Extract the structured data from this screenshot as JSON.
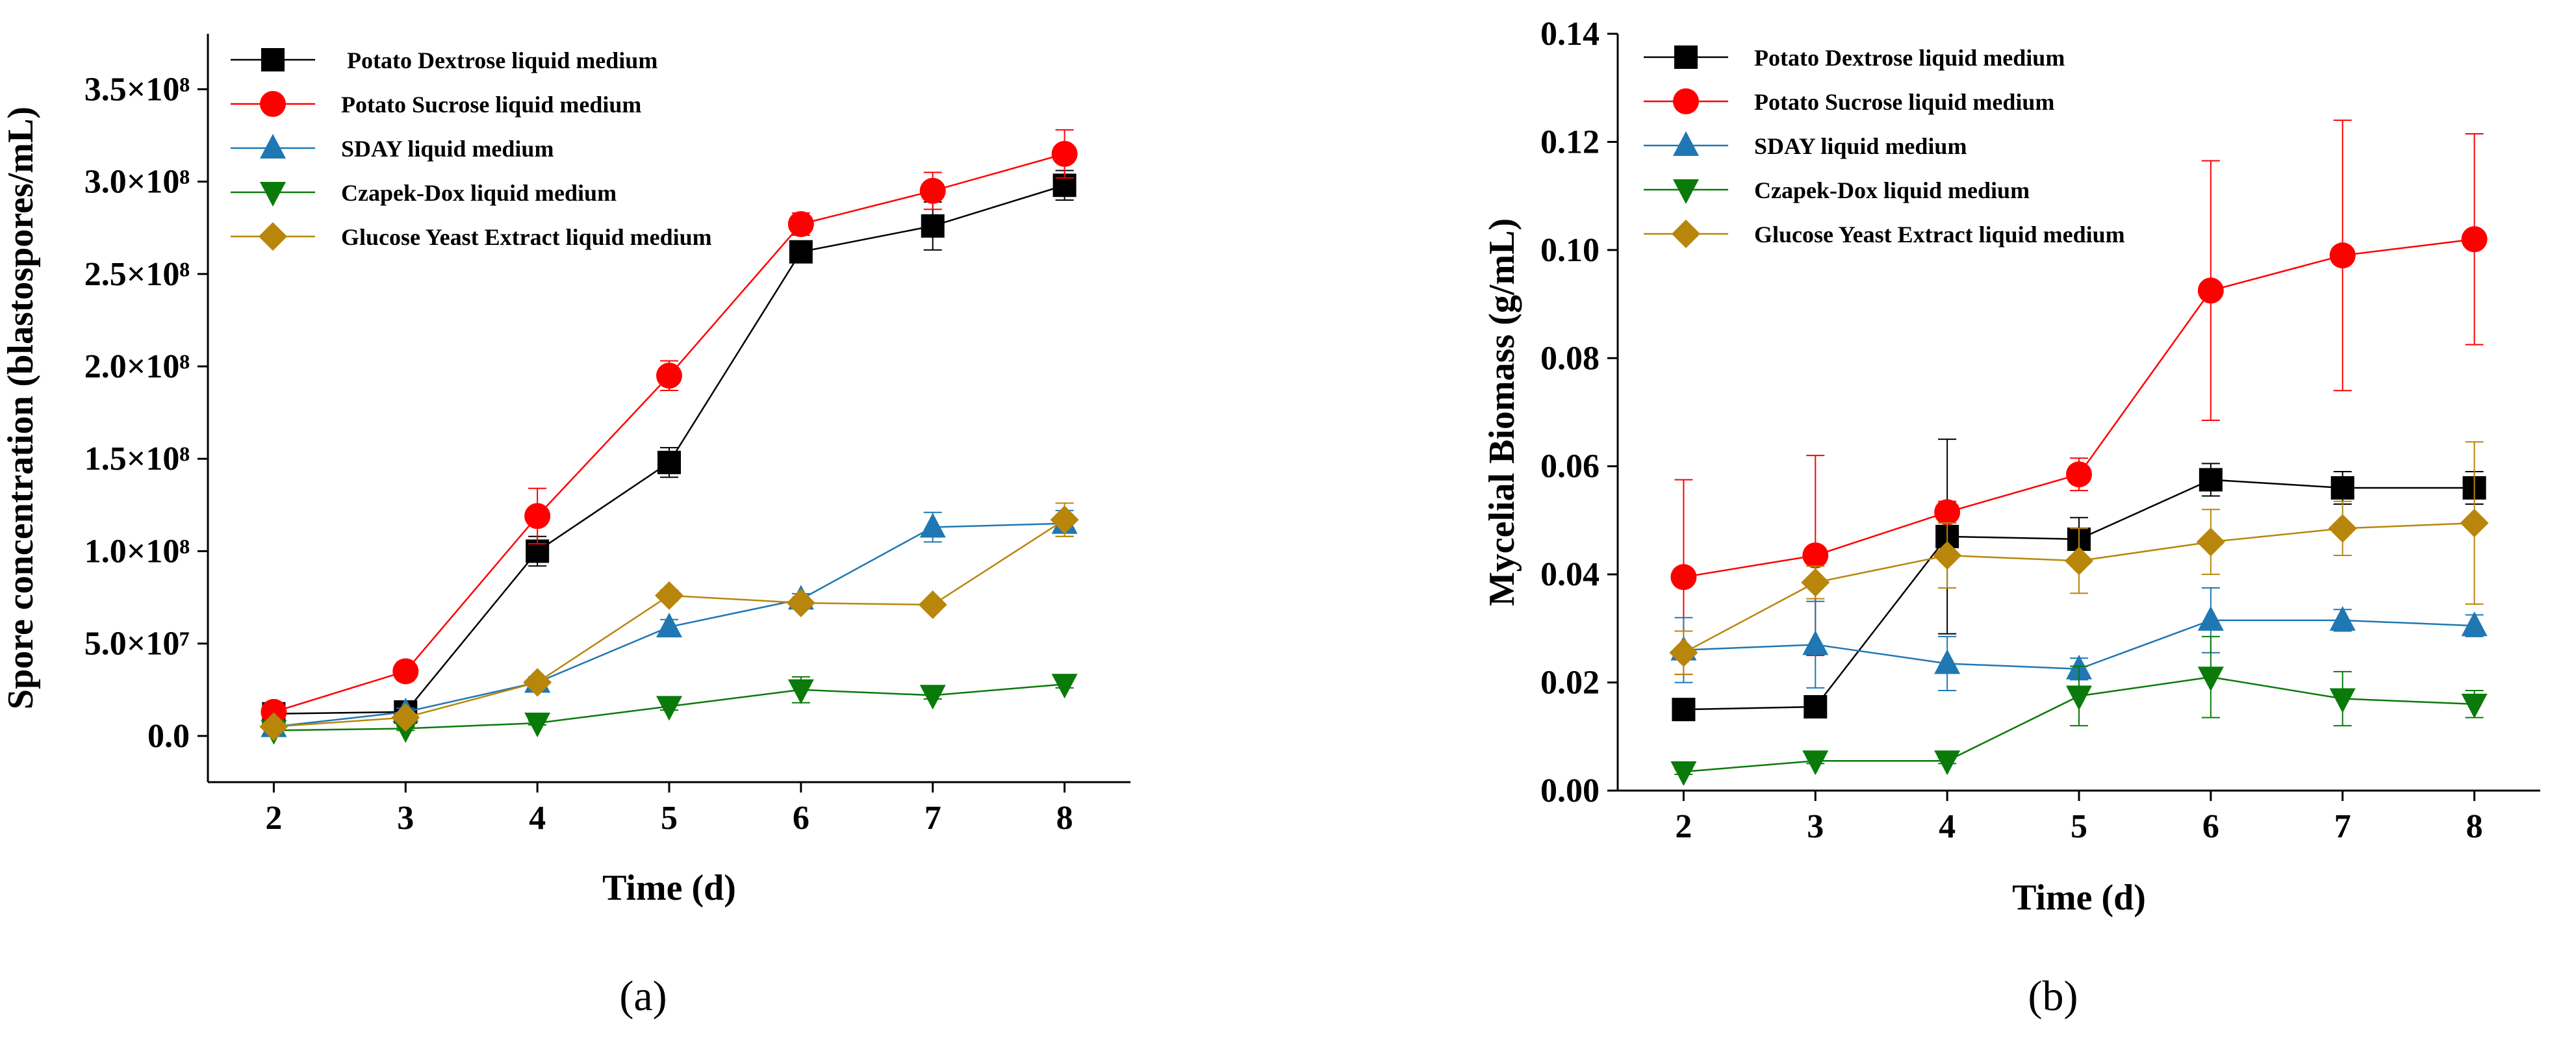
{
  "chart_data": [
    {
      "type": "line",
      "panel_label": "(a)",
      "xlabel": "Time (d)",
      "ylabel": "Spore concentration (blastospores/mL)",
      "xlim": [
        1.5,
        8.5
      ],
      "ylim": [
        -25000000.0,
        380000000.0
      ],
      "x_ticks": [
        2,
        3,
        4,
        5,
        6,
        7,
        8
      ],
      "x_tick_labels": [
        "2",
        "3",
        "4",
        "5",
        "6",
        "7",
        "8"
      ],
      "y_ticks": [
        0,
        50000000.0,
        100000000.0,
        150000000.0,
        200000000.0,
        250000000.0,
        300000000.0,
        350000000.0
      ],
      "y_tick_labels": [
        "0.0",
        "5.0×10⁷",
        "1.0×10⁸",
        "1.5×10⁸",
        "2.0×10⁸",
        "2.5×10⁸",
        "3.0×10⁸",
        "3.5×10⁸"
      ],
      "legend_position": "top-left",
      "x": [
        2,
        3,
        4,
        5,
        6,
        7,
        8
      ],
      "series": [
        {
          "name": " Potato Dextrose liquid medium",
          "color": "#000000",
          "marker": "square",
          "values": [
            12000000,
            13000000,
            100000000,
            148000000,
            262000000,
            276000000,
            298000000
          ],
          "errors": [
            1000000,
            1000000,
            8000000,
            8000000,
            5000000,
            13000000,
            8000000
          ]
        },
        {
          "name": "Potato Sucrose liquid medium",
          "color": "#ff0000",
          "marker": "circle",
          "values": [
            13000000,
            35000000,
            119000000,
            195000000,
            277000000,
            295000000,
            315000000
          ],
          "errors": [
            2000000,
            5000000,
            15000000,
            8000000,
            6000000,
            10000000,
            13000000
          ]
        },
        {
          "name": "SDAY liquid medium",
          "color": "#1f77b4",
          "marker": "triangle-up",
          "values": [
            5000000,
            13000000,
            29000000,
            59000000,
            74000000,
            113000000,
            115000000
          ],
          "errors": [
            1000000,
            2000000,
            3000000,
            4000000,
            3000000,
            8000000,
            7000000
          ]
        },
        {
          "name": "Czapek-Dox liquid medium",
          "color": "#0a7a0a",
          "marker": "triangle-down",
          "values": [
            3000000,
            4000000,
            7000000,
            16000000,
            25000000,
            22000000,
            28000000
          ],
          "errors": [
            1000000,
            1000000,
            1000000,
            2000000,
            7000000,
            2000000,
            2000000
          ]
        },
        {
          "name": "Glucose Yeast Extract liquid medium",
          "color": "#b8860b",
          "marker": "diamond",
          "values": [
            5000000,
            10000000,
            29000000,
            76000000,
            72000000,
            71000000,
            117000000
          ],
          "errors": [
            1000000,
            2000000,
            2000000,
            3000000,
            3000000,
            2000000,
            9000000
          ]
        }
      ]
    },
    {
      "type": "line",
      "panel_label": "(b)",
      "xlabel": "Time (d)",
      "ylabel": "Mycelial Biomass (g/mL)",
      "xlim": [
        1.5,
        8.5
      ],
      "ylim": [
        0,
        0.14
      ],
      "x_ticks": [
        2,
        3,
        4,
        5,
        6,
        7,
        8
      ],
      "x_tick_labels": [
        "2",
        "3",
        "4",
        "5",
        "6",
        "7",
        "8"
      ],
      "y_ticks": [
        0,
        0.02,
        0.04,
        0.06,
        0.08,
        0.1,
        0.12,
        0.14
      ],
      "y_tick_labels": [
        "0.00",
        "0.02",
        "0.04",
        "0.06",
        "0.08",
        "0.10",
        "0.12",
        "0.14"
      ],
      "legend_position": "top-left",
      "x": [
        2,
        3,
        4,
        5,
        6,
        7,
        8
      ],
      "series": [
        {
          "name": "Potato Dextrose liquid medium",
          "color": "#000000",
          "marker": "square",
          "values": [
            0.015,
            0.0155,
            0.047,
            0.0465,
            0.0575,
            0.056,
            0.056
          ],
          "errors": [
            0.001,
            0.001,
            0.018,
            0.004,
            0.003,
            0.003,
            0.003
          ]
        },
        {
          "name": "Potato Sucrose liquid medium",
          "color": "#ff0000",
          "marker": "circle",
          "values": [
            0.0395,
            0.0435,
            0.0515,
            0.0585,
            0.0925,
            0.099,
            0.102
          ],
          "errors": [
            0.018,
            0.0185,
            0.002,
            0.003,
            0.024,
            0.025,
            0.0195
          ]
        },
        {
          "name": "SDAY liquid medium",
          "color": "#1f77b4",
          "marker": "triangle-up",
          "values": [
            0.026,
            0.027,
            0.0235,
            0.0225,
            0.0315,
            0.0315,
            0.0305
          ],
          "errors": [
            0.006,
            0.008,
            0.005,
            0.002,
            0.006,
            0.002,
            0.002
          ]
        },
        {
          "name": "Czapek-Dox liquid medium",
          "color": "#0a7a0a",
          "marker": "triangle-down",
          "values": [
            0.0035,
            0.0055,
            0.0055,
            0.0175,
            0.021,
            0.017,
            0.016
          ],
          "errors": [
            0.0005,
            0.0005,
            0.0005,
            0.0055,
            0.0075,
            0.005,
            0.0025
          ]
        },
        {
          "name": "Glucose Yeast Extract liquid medium",
          "color": "#b8860b",
          "marker": "diamond",
          "values": [
            0.0255,
            0.0385,
            0.0435,
            0.0425,
            0.046,
            0.0485,
            0.0495
          ],
          "errors": [
            0.004,
            0.003,
            0.006,
            0.006,
            0.006,
            0.005,
            0.015
          ]
        }
      ]
    }
  ]
}
